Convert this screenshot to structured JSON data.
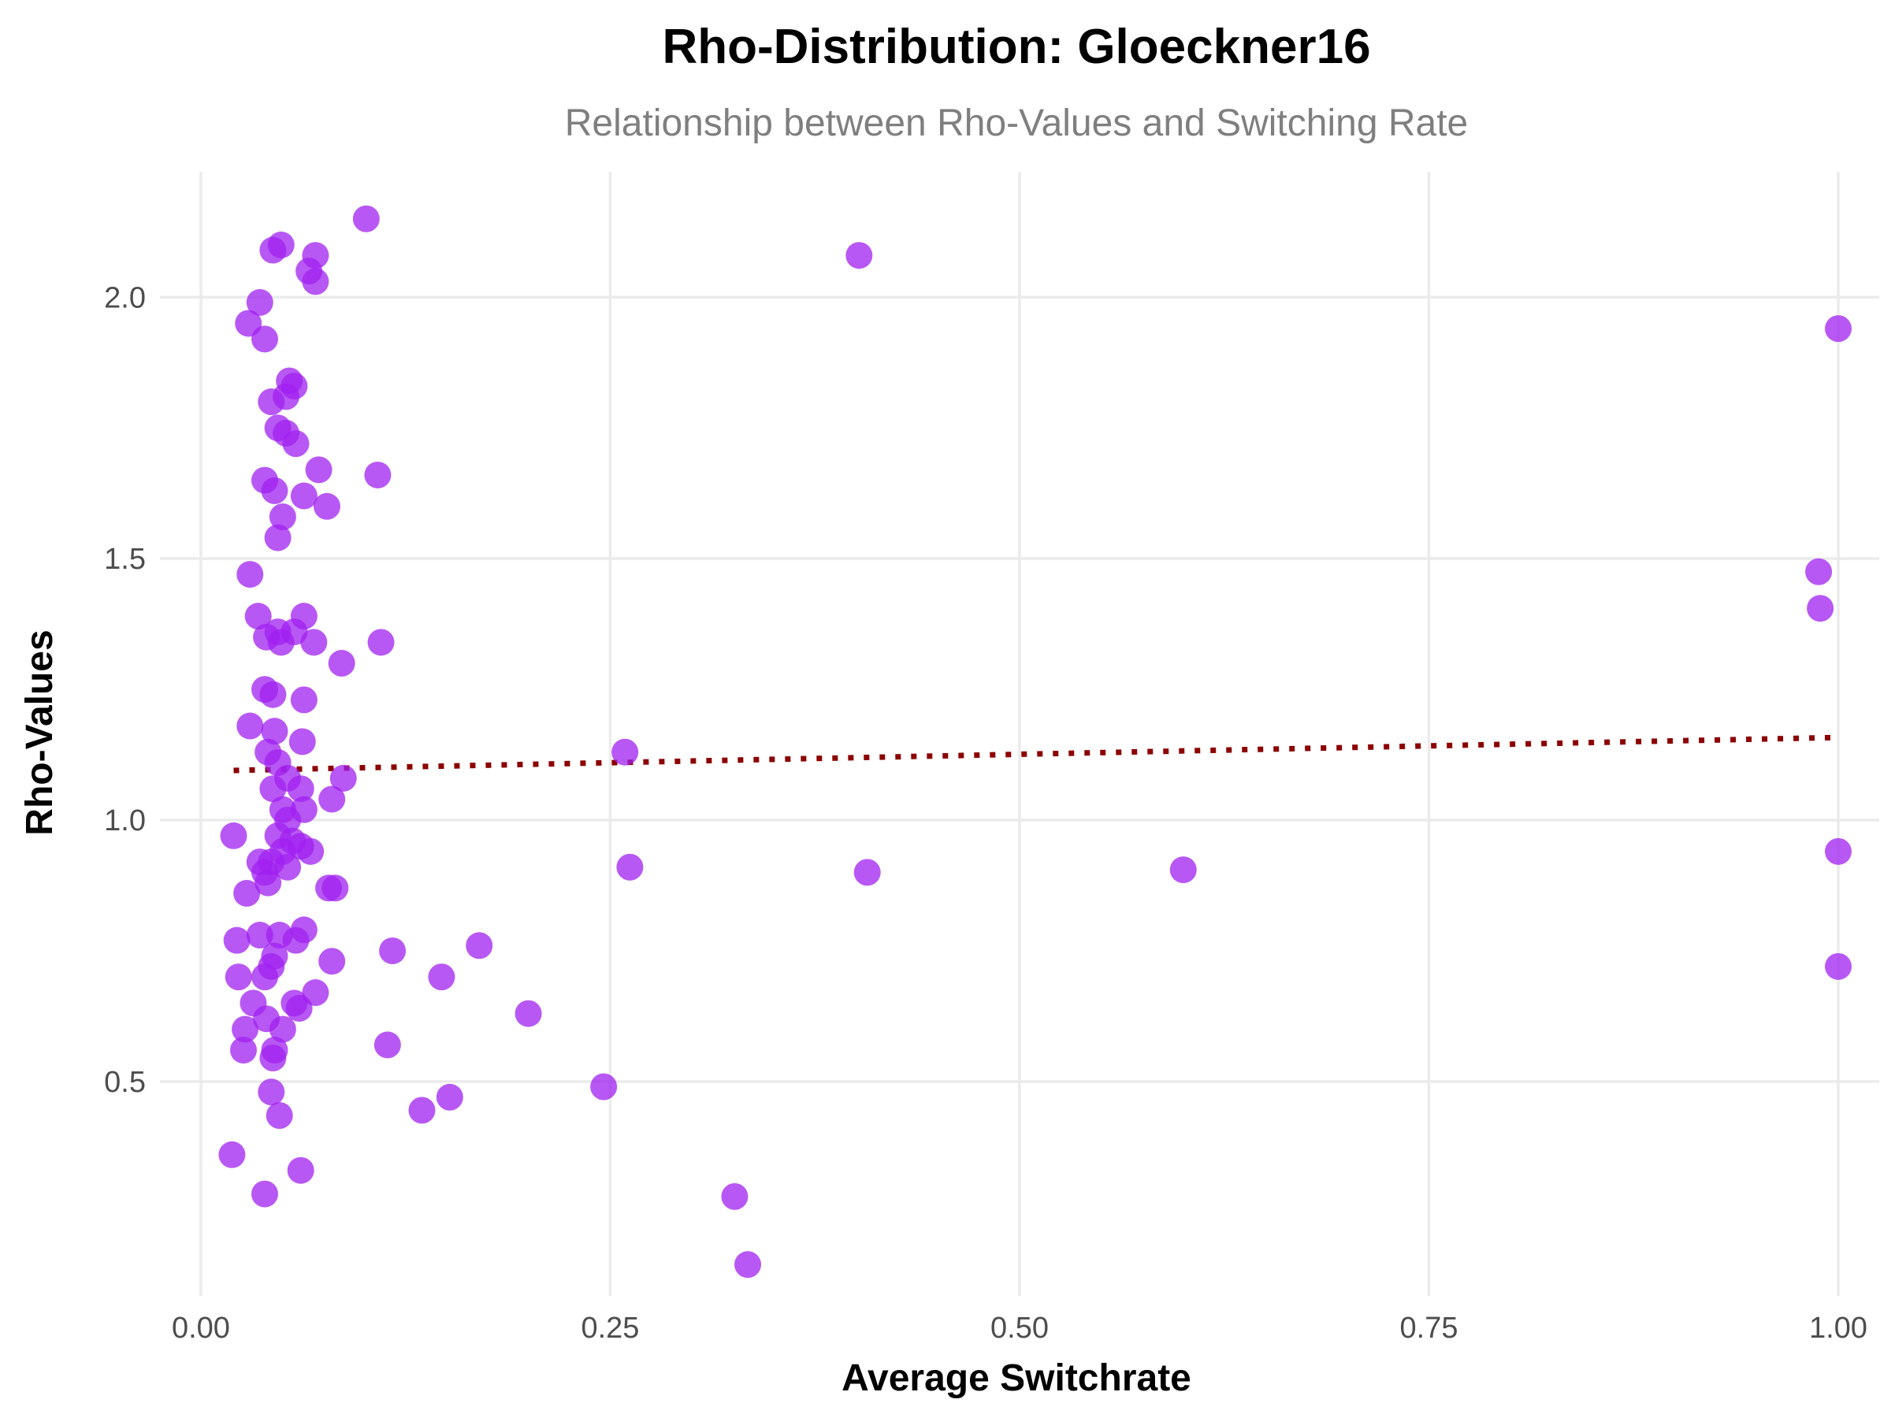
{
  "chart_data": {
    "type": "scatter",
    "title": "Rho-Distribution: Gloeckner16",
    "subtitle": "Relationship between Rho-Values and Switching Rate",
    "xlabel": "Average Switchrate",
    "ylabel": "Rho-Values",
    "xlim": [
      -0.025,
      1.025
    ],
    "ylim": [
      0.09,
      2.24
    ],
    "xticks": [
      0,
      0.25,
      0.5,
      0.75,
      1
    ],
    "xtick_labels": [
      "0.00",
      "0.25",
      "0.50",
      "0.75",
      "1.00"
    ],
    "yticks": [
      0.5,
      1.0,
      1.5,
      2.0
    ],
    "ytick_labels": [
      "0.5",
      "1.0",
      "1.5",
      "2.0"
    ],
    "grid": true,
    "legend": "none",
    "point_color": "#a020f0",
    "trend_color": "#8b0000",
    "trend_line": {
      "style": "dotted",
      "x": [
        0.02,
        1.0
      ],
      "y": [
        1.095,
        1.158
      ]
    },
    "points": [
      {
        "x": 0.101,
        "y": 2.15
      },
      {
        "x": 0.049,
        "y": 2.1
      },
      {
        "x": 0.044,
        "y": 2.09
      },
      {
        "x": 0.07,
        "y": 2.08
      },
      {
        "x": 0.066,
        "y": 2.05
      },
      {
        "x": 0.07,
        "y": 2.03
      },
      {
        "x": 0.036,
        "y": 1.99
      },
      {
        "x": 0.029,
        "y": 1.95
      },
      {
        "x": 0.039,
        "y": 1.92
      },
      {
        "x": 0.054,
        "y": 1.84
      },
      {
        "x": 0.057,
        "y": 1.83
      },
      {
        "x": 0.052,
        "y": 1.81
      },
      {
        "x": 0.043,
        "y": 1.8
      },
      {
        "x": 0.047,
        "y": 1.75
      },
      {
        "x": 0.052,
        "y": 1.74
      },
      {
        "x": 0.058,
        "y": 1.72
      },
      {
        "x": 0.072,
        "y": 1.67
      },
      {
        "x": 0.108,
        "y": 1.66
      },
      {
        "x": 0.039,
        "y": 1.65
      },
      {
        "x": 0.045,
        "y": 1.63
      },
      {
        "x": 0.063,
        "y": 1.62
      },
      {
        "x": 0.077,
        "y": 1.6
      },
      {
        "x": 0.05,
        "y": 1.58
      },
      {
        "x": 0.047,
        "y": 1.54
      },
      {
        "x": 0.03,
        "y": 1.47
      },
      {
        "x": 0.035,
        "y": 1.39
      },
      {
        "x": 0.063,
        "y": 1.39
      },
      {
        "x": 0.047,
        "y": 1.36
      },
      {
        "x": 0.057,
        "y": 1.36
      },
      {
        "x": 0.04,
        "y": 1.35
      },
      {
        "x": 0.049,
        "y": 1.34
      },
      {
        "x": 0.069,
        "y": 1.34
      },
      {
        "x": 0.11,
        "y": 1.34
      },
      {
        "x": 0.086,
        "y": 1.3
      },
      {
        "x": 0.039,
        "y": 1.25
      },
      {
        "x": 0.044,
        "y": 1.24
      },
      {
        "x": 0.063,
        "y": 1.23
      },
      {
        "x": 0.03,
        "y": 1.18
      },
      {
        "x": 0.045,
        "y": 1.17
      },
      {
        "x": 0.062,
        "y": 1.15
      },
      {
        "x": 0.041,
        "y": 1.13
      },
      {
        "x": 0.259,
        "y": 1.13
      },
      {
        "x": 0.047,
        "y": 1.11
      },
      {
        "x": 0.053,
        "y": 1.08
      },
      {
        "x": 0.087,
        "y": 1.08
      },
      {
        "x": 0.044,
        "y": 1.06
      },
      {
        "x": 0.061,
        "y": 1.06
      },
      {
        "x": 0.08,
        "y": 1.04
      },
      {
        "x": 0.05,
        "y": 1.02
      },
      {
        "x": 0.063,
        "y": 1.02
      },
      {
        "x": 0.053,
        "y": 1.0
      },
      {
        "x": 0.02,
        "y": 0.97
      },
      {
        "x": 0.047,
        "y": 0.97
      },
      {
        "x": 0.056,
        "y": 0.96
      },
      {
        "x": 0.061,
        "y": 0.95
      },
      {
        "x": 0.05,
        "y": 0.94
      },
      {
        "x": 0.067,
        "y": 0.94
      },
      {
        "x": 0.036,
        "y": 0.92
      },
      {
        "x": 0.043,
        "y": 0.92
      },
      {
        "x": 1.0,
        "y": 0.94
      },
      {
        "x": 0.039,
        "y": 0.9
      },
      {
        "x": 0.053,
        "y": 0.91
      },
      {
        "x": 0.262,
        "y": 0.91
      },
      {
        "x": 0.6,
        "y": 0.905
      },
      {
        "x": 0.407,
        "y": 0.9
      },
      {
        "x": 0.041,
        "y": 0.88
      },
      {
        "x": 0.078,
        "y": 0.87
      },
      {
        "x": 0.082,
        "y": 0.87
      },
      {
        "x": 0.028,
        "y": 0.86
      },
      {
        "x": 0.036,
        "y": 0.78
      },
      {
        "x": 0.048,
        "y": 0.78
      },
      {
        "x": 0.063,
        "y": 0.79
      },
      {
        "x": 0.022,
        "y": 0.77
      },
      {
        "x": 0.058,
        "y": 0.77
      },
      {
        "x": 0.117,
        "y": 0.75
      },
      {
        "x": 0.17,
        "y": 0.76
      },
      {
        "x": 0.045,
        "y": 0.74
      },
      {
        "x": 0.08,
        "y": 0.73
      },
      {
        "x": 0.043,
        "y": 0.72
      },
      {
        "x": 1.0,
        "y": 0.72
      },
      {
        "x": 0.023,
        "y": 0.7
      },
      {
        "x": 0.147,
        "y": 0.7
      },
      {
        "x": 0.039,
        "y": 0.7
      },
      {
        "x": 0.07,
        "y": 0.67
      },
      {
        "x": 0.032,
        "y": 0.65
      },
      {
        "x": 0.057,
        "y": 0.65
      },
      {
        "x": 0.06,
        "y": 0.64
      },
      {
        "x": 0.2,
        "y": 0.63
      },
      {
        "x": 0.04,
        "y": 0.62
      },
      {
        "x": 0.027,
        "y": 0.6
      },
      {
        "x": 0.05,
        "y": 0.6
      },
      {
        "x": 0.114,
        "y": 0.57
      },
      {
        "x": 0.045,
        "y": 0.56
      },
      {
        "x": 0.026,
        "y": 0.56
      },
      {
        "x": 0.044,
        "y": 0.545
      },
      {
        "x": 0.246,
        "y": 0.49
      },
      {
        "x": 0.043,
        "y": 0.48
      },
      {
        "x": 0.152,
        "y": 0.47
      },
      {
        "x": 0.135,
        "y": 0.445
      },
      {
        "x": 0.048,
        "y": 0.435
      },
      {
        "x": 0.019,
        "y": 0.36
      },
      {
        "x": 0.061,
        "y": 0.33
      },
      {
        "x": 0.039,
        "y": 0.285
      },
      {
        "x": 0.326,
        "y": 0.28
      },
      {
        "x": 0.334,
        "y": 0.15
      },
      {
        "x": 0.402,
        "y": 2.08
      },
      {
        "x": 1.0,
        "y": 1.94
      },
      {
        "x": 0.988,
        "y": 1.475
      },
      {
        "x": 0.989,
        "y": 1.405
      }
    ]
  }
}
